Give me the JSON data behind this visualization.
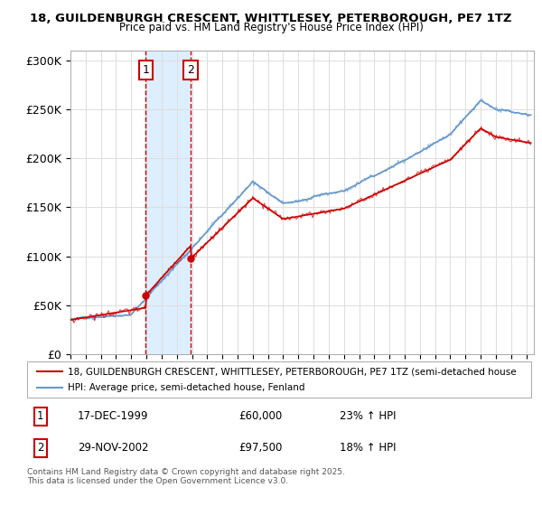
{
  "title_line1": "18, GUILDENBURGH CRESCENT, WHITTLESEY, PETERBOROUGH, PE7 1TZ",
  "title_line2": "Price paid vs. HM Land Registry's House Price Index (HPI)",
  "ylabel_ticks": [
    "£0",
    "£50K",
    "£100K",
    "£150K",
    "£200K",
    "£250K",
    "£300K"
  ],
  "ytick_vals": [
    0,
    50000,
    100000,
    150000,
    200000,
    250000,
    300000
  ],
  "ylim": [
    0,
    310000
  ],
  "xlim_start": 1995.0,
  "xlim_end": 2025.5,
  "transaction1_date": 1999.96,
  "transaction1_price": 60000,
  "transaction1_label": "1",
  "transaction2_date": 2002.91,
  "transaction2_price": 97500,
  "transaction2_label": "2",
  "legend_line1": "18, GUILDENBURGH CRESCENT, WHITTLESEY, PETERBOROUGH, PE7 1TZ (semi-detached house",
  "legend_line2": "HPI: Average price, semi-detached house, Fenland",
  "table_row1": [
    "1",
    "17-DEC-1999",
    "£60,000",
    "23% ↑ HPI"
  ],
  "table_row2": [
    "2",
    "29-NOV-2002",
    "£97,500",
    "18% ↑ HPI"
  ],
  "footnote": "Contains HM Land Registry data © Crown copyright and database right 2025.\nThis data is licensed under the Open Government Licence v3.0.",
  "line_color_red": "#cc0000",
  "line_color_blue": "#6699cc",
  "background_color": "#ffffff",
  "grid_color": "#dddddd",
  "shade_color": "#ddeeff"
}
